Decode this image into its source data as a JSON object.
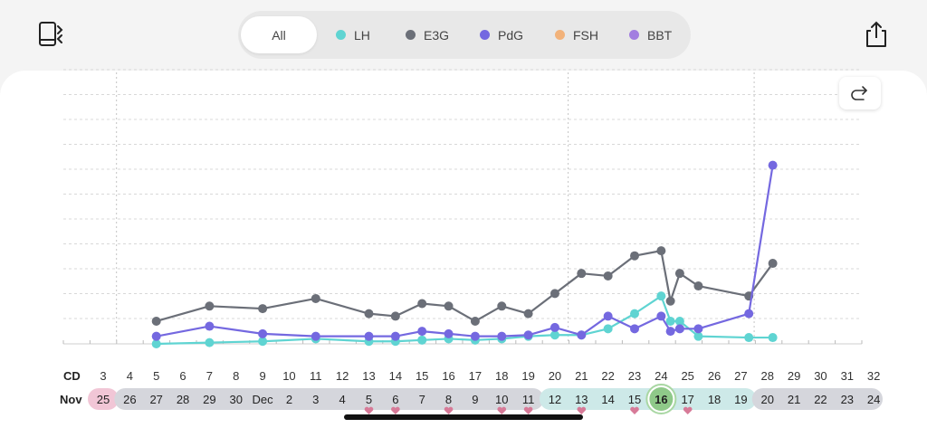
{
  "header": {
    "left_icon": "book-sync-icon",
    "right_icon": "share-icon",
    "filters": [
      {
        "label": "All",
        "color": null,
        "active": true
      },
      {
        "label": "LH",
        "color": "#5fd4d2",
        "active": false
      },
      {
        "label": "E3G",
        "color": "#6b6f78",
        "active": false
      },
      {
        "label": "PdG",
        "color": "#7468e0",
        "active": false
      },
      {
        "label": "FSH",
        "color": "#f2b27a",
        "active": false
      },
      {
        "label": "BBT",
        "color": "#a27ee0",
        "active": false
      }
    ]
  },
  "redo_icon": "redo-arrow-icon",
  "chart_data": {
    "type": "line",
    "row_labels": {
      "cd": "CD",
      "month": "Nov"
    },
    "cycle_days": [
      "3",
      "4",
      "5",
      "6",
      "7",
      "8",
      "9",
      "10",
      "11",
      "12",
      "13",
      "14",
      "15",
      "16",
      "17",
      "18",
      "19",
      "20",
      "21",
      "22",
      "23",
      "24",
      "25",
      "26",
      "27",
      "28",
      "29",
      "30",
      "31",
      "32"
    ],
    "dates": [
      "25",
      "26",
      "27",
      "28",
      "29",
      "30",
      "Dec",
      "2",
      "3",
      "4",
      "5",
      "6",
      "7",
      "8",
      "9",
      "10",
      "11",
      "12",
      "13",
      "14",
      "15",
      "16",
      "17",
      "18",
      "19",
      "20",
      "21",
      "22",
      "23",
      "24"
    ],
    "date_groups": [
      {
        "start": 0,
        "end": 0,
        "color": "#f1c6d6"
      },
      {
        "start": 1,
        "end": 16,
        "color": "#d5d6dc"
      },
      {
        "start": 17,
        "end": 24,
        "color": "#cde9e8"
      },
      {
        "start": 25,
        "end": 29,
        "color": "#d5d6dc"
      }
    ],
    "highlight_index": 21,
    "heart_indices": [
      10,
      11,
      13,
      15,
      16,
      18,
      20,
      22
    ],
    "cycle_separators": [
      0.5,
      17.5,
      24.5
    ],
    "y_gridlines": 11,
    "series": [
      {
        "name": "E3G",
        "color": "#6b6f78",
        "points": [
          [
            2,
            0.09
          ],
          [
            4,
            0.15
          ],
          [
            6,
            0.14
          ],
          [
            8,
            0.18
          ],
          [
            10,
            0.12
          ],
          [
            11,
            0.11
          ],
          [
            12,
            0.16
          ],
          [
            13,
            0.15
          ],
          [
            14,
            0.09
          ],
          [
            15,
            0.15
          ],
          [
            16,
            0.12
          ],
          [
            17,
            0.2
          ],
          [
            18,
            0.28
          ],
          [
            19,
            0.27
          ],
          [
            20,
            0.35
          ],
          [
            21,
            0.37
          ],
          [
            21.35,
            0.17
          ],
          [
            21.7,
            0.28
          ],
          [
            22.4,
            0.23
          ],
          [
            24.3,
            0.19
          ],
          [
            25.2,
            0.32
          ]
        ]
      },
      {
        "name": "LH",
        "color": "#5fd4d2",
        "points": [
          [
            2,
            0.0
          ],
          [
            4,
            0.005
          ],
          [
            6,
            0.01
          ],
          [
            8,
            0.02
          ],
          [
            10,
            0.01
          ],
          [
            11,
            0.01
          ],
          [
            12,
            0.015
          ],
          [
            13,
            0.02
          ],
          [
            14,
            0.015
          ],
          [
            15,
            0.02
          ],
          [
            16,
            0.03
          ],
          [
            17,
            0.035
          ],
          [
            18,
            0.035
          ],
          [
            19,
            0.06
          ],
          [
            20,
            0.12
          ],
          [
            21,
            0.19
          ],
          [
            21.35,
            0.09
          ],
          [
            21.7,
            0.09
          ],
          [
            22.4,
            0.03
          ],
          [
            24.3,
            0.025
          ],
          [
            25.2,
            0.025
          ]
        ]
      },
      {
        "name": "PdG",
        "color": "#7468e0",
        "points": [
          [
            2,
            0.03
          ],
          [
            4,
            0.07
          ],
          [
            6,
            0.04
          ],
          [
            8,
            0.03
          ],
          [
            10,
            0.03
          ],
          [
            11,
            0.03
          ],
          [
            12,
            0.05
          ],
          [
            13,
            0.04
          ],
          [
            14,
            0.03
          ],
          [
            15,
            0.03
          ],
          [
            16,
            0.035
          ],
          [
            17,
            0.065
          ],
          [
            18,
            0.035
          ],
          [
            19,
            0.11
          ],
          [
            20,
            0.06
          ],
          [
            21,
            0.11
          ],
          [
            21.35,
            0.05
          ],
          [
            21.7,
            0.06
          ],
          [
            22.4,
            0.06
          ],
          [
            24.3,
            0.12
          ],
          [
            25.2,
            0.71
          ]
        ]
      }
    ]
  }
}
